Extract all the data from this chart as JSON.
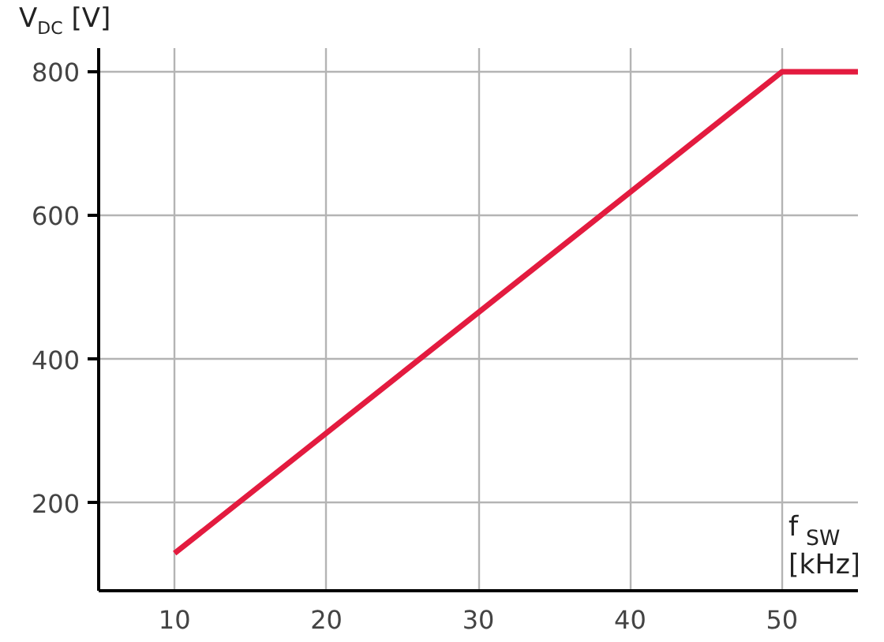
{
  "chart_data": {
    "type": "line",
    "xlabel": "f$_{SW}$ [kHz]",
    "ylabel": "V$_{DC}$ [V]",
    "x": [
      10,
      50,
      55
    ],
    "series": [
      {
        "color": "#e31b3f",
        "values": [
          130,
          800,
          800
        ]
      }
    ],
    "xlim": [
      5,
      55
    ],
    "ylim": [
      78,
      833
    ],
    "xticks": [
      10,
      20,
      30,
      40,
      50
    ],
    "yticks": [
      200,
      400,
      600,
      800
    ],
    "grid": true,
    "marker": "none",
    "line_style": "solid"
  }
}
